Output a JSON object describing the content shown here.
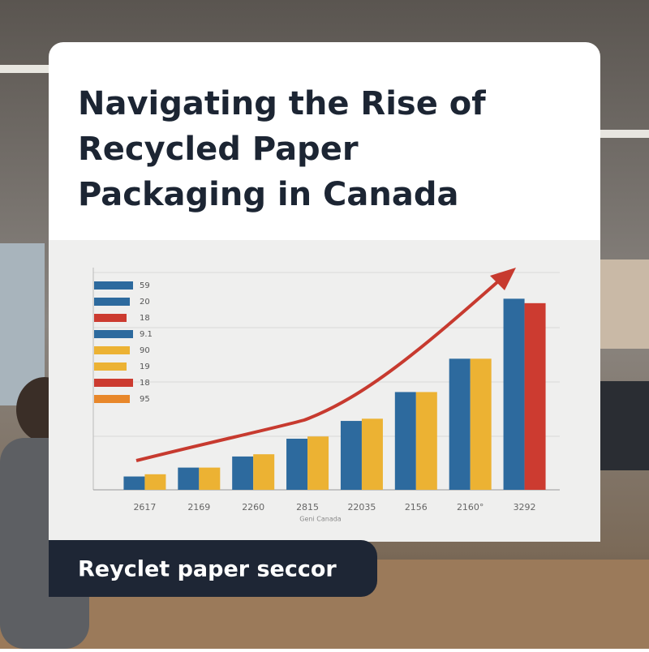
{
  "header": {
    "title_lines": [
      "Navigating the Rise of",
      "Recycled Paper",
      "Packaging in Canada"
    ]
  },
  "chart_data": {
    "type": "bar",
    "categories": [
      "2617",
      "2169",
      "2260",
      "2815",
      "22035",
      "2156",
      "2160°",
      "3292"
    ],
    "x_label": "Geni Canada",
    "ylim": [
      0,
      100
    ],
    "series": [
      {
        "color": "#2d6a9e",
        "values": [
          6,
          10,
          15,
          23,
          31,
          44,
          59,
          86
        ]
      },
      {
        "color": "#ecb233",
        "colors": [
          "#ecb233",
          "#ecb233",
          "#ecb233",
          "#ecb233",
          "#ecb233",
          "#ecb233",
          "#ecb233",
          "#cc3b30"
        ],
        "values": [
          7,
          10,
          16,
          24,
          32,
          44,
          59,
          84
        ]
      }
    ],
    "side_labels": [
      {
        "label": "59",
        "color": "#2d6a9e"
      },
      {
        "label": "20",
        "color": "#2d6a9e"
      },
      {
        "label": "18",
        "color": "#cc3b30"
      },
      {
        "label": "9.1",
        "color": "#2d6a9e"
      },
      {
        "label": "90",
        "color": "#ecb233"
      },
      {
        "label": "19",
        "color": "#ecb233"
      },
      {
        "label": "18",
        "color": "#cc3b30"
      },
      {
        "label": "95",
        "color": "#e8872a"
      }
    ]
  },
  "caption": "Reyclet paper seccor"
}
